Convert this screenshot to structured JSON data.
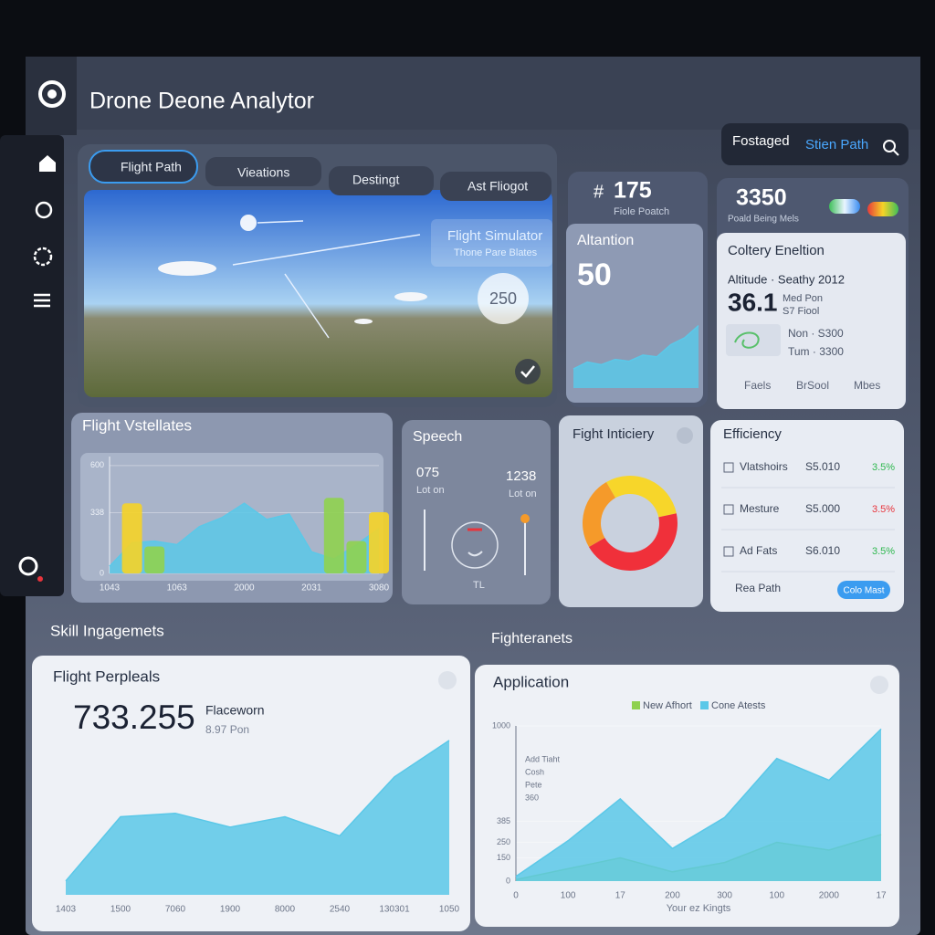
{
  "header": {
    "title": "Drone Deone Analytor",
    "actions": [
      "Fostaged",
      "Stien Path"
    ]
  },
  "tabs": [
    "Flight Path",
    "Vieations",
    "Destingt",
    "Ast Fliogot"
  ],
  "simulator": {
    "title": "Flight Simulator",
    "subtitle": "Thone Pare Blates",
    "badge": "250"
  },
  "stat_path": {
    "value": "175",
    "label": "Fiole Poatch"
  },
  "altitude": {
    "value": "50"
  },
  "stat_beam": {
    "value": "3350",
    "label": "Poald Being Mels"
  },
  "collection": {
    "title": "Coltery Eneltion",
    "line1": "Altitude · Seathy 2012",
    "value": "36.1",
    "sub1": "Med Pon",
    "sub2": "S7 Fiool",
    "stats": [
      "Non · S300",
      "Tum · 3300"
    ],
    "links": [
      "Faels",
      "BrSool",
      "Mbes"
    ]
  },
  "speech": {
    "title": "Speech",
    "left": {
      "value": "075",
      "label": "Lot on"
    },
    "right": {
      "value": "1238",
      "label": "Lot on"
    },
    "gauge_label": "TL"
  },
  "efficiency": {
    "title": "Efficiency",
    "rows": [
      {
        "name": "Vlatshoirs",
        "value": "S5.010",
        "change": "3.5%",
        "color": "#2fb84f"
      },
      {
        "name": "Mesture",
        "value": "S5.000",
        "change": "3.5%",
        "color": "#e8343c"
      },
      {
        "name": "Ad Fats",
        "value": "S6.010",
        "change": "3.5%",
        "color": "#2fb84f"
      }
    ],
    "footer": "Rea Path",
    "button": "Colo Mast"
  },
  "sections": [
    "Skill Ingagemets",
    "Fighteranets"
  ],
  "perpleals": {
    "value": "733.255",
    "label": "Flaceworn",
    "sub": "8.97 Pon"
  },
  "application": {
    "notes": [
      "Add Tiaht",
      "Cosh",
      "Pete",
      "360"
    ]
  },
  "chart_data": [
    {
      "type": "area",
      "title": "Altantion",
      "values": [
        22,
        30,
        27,
        33,
        31,
        38,
        36,
        50,
        58,
        72
      ],
      "ylim": [
        0,
        100
      ],
      "color": "#5bc8e8"
    },
    {
      "type": "combo",
      "title": "Flight Vstellates",
      "categories": [
        "1043",
        null,
        null,
        "1063",
        null,
        null,
        "2000",
        null,
        null,
        "2031",
        null,
        null,
        "3080"
      ],
      "ylim": [
        0,
        650
      ],
      "yticks": [
        0,
        338,
        600
      ],
      "series": [
        {
          "mark": "area",
          "color": "#5bc8e8",
          "values": [
            40,
            170,
            180,
            160,
            260,
            310,
            390,
            300,
            330,
            120,
            80,
            160,
            250
          ]
        },
        {
          "mark": "bar",
          "color": "#f5d327",
          "values": [
            null,
            390,
            null,
            null,
            null,
            null,
            null,
            null,
            null,
            null,
            null,
            null,
            340
          ]
        },
        {
          "mark": "bar",
          "color": "#8fd14f",
          "values": [
            null,
            null,
            150,
            null,
            null,
            null,
            null,
            null,
            null,
            null,
            420,
            180,
            null
          ]
        }
      ]
    },
    {
      "type": "pie",
      "title": "Fight Inticiery",
      "donut": true,
      "values": [
        30,
        45,
        25
      ],
      "colors": [
        "#f7d62a",
        "#f0303a",
        "#f59a2a"
      ]
    },
    {
      "type": "area",
      "title": "Flight Perpleals",
      "categories": [
        "1403",
        "1500",
        "7060",
        "1900",
        "8000",
        "2540",
        "130301",
        "1050"
      ],
      "values": [
        8,
        45,
        47,
        39,
        45,
        34,
        68,
        89
      ],
      "ylim": [
        0,
        100
      ],
      "color": "#5bc8e8"
    },
    {
      "type": "area",
      "title": "Application",
      "categories": [
        "0",
        "100",
        "17",
        "200",
        "300",
        "100",
        "2000",
        "17"
      ],
      "ylim": [
        0,
        1000
      ],
      "yticks": [
        0,
        150,
        250,
        385,
        1000
      ],
      "xlabel": "Your ez Kingts",
      "series": [
        {
          "name": "New Afhort",
          "color": "#8fd14f",
          "values": [
            10,
            80,
            150,
            60,
            120,
            250,
            200,
            300
          ]
        },
        {
          "name": "Cone Atests",
          "color": "#5bc8e8",
          "values": [
            30,
            260,
            530,
            210,
            410,
            790,
            650,
            980
          ]
        }
      ]
    }
  ]
}
